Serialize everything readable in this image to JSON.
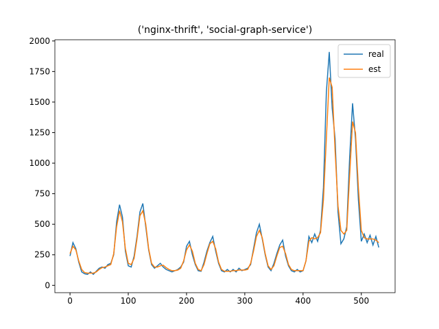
{
  "chart_data": {
    "type": "line",
    "title": "('nginx-thrift', 'social-graph-service')",
    "x": [
      0,
      5,
      10,
      15,
      20,
      25,
      30,
      35,
      40,
      45,
      50,
      55,
      60,
      65,
      70,
      75,
      80,
      85,
      90,
      95,
      100,
      105,
      110,
      115,
      120,
      125,
      130,
      135,
      140,
      145,
      150,
      155,
      160,
      165,
      170,
      175,
      180,
      185,
      190,
      195,
      200,
      205,
      210,
      215,
      220,
      225,
      230,
      235,
      240,
      245,
      250,
      255,
      260,
      265,
      270,
      275,
      280,
      285,
      290,
      295,
      300,
      305,
      310,
      315,
      320,
      325,
      330,
      335,
      340,
      345,
      350,
      355,
      360,
      365,
      370,
      375,
      380,
      385,
      390,
      395,
      400,
      405,
      410,
      415,
      420,
      425,
      430,
      435,
      440,
      445,
      450,
      455,
      460,
      465,
      470,
      475,
      480,
      485,
      490,
      495,
      500,
      505,
      510,
      515,
      520,
      525,
      530
    ],
    "series": [
      {
        "name": "real",
        "color": "#1f77b4",
        "values": [
          240,
          350,
          300,
          190,
          110,
          95,
          90,
          110,
          90,
          115,
          140,
          150,
          140,
          170,
          180,
          250,
          520,
          660,
          560,
          280,
          160,
          150,
          240,
          400,
          600,
          670,
          480,
          290,
          170,
          140,
          160,
          180,
          150,
          130,
          120,
          110,
          120,
          130,
          150,
          190,
          320,
          360,
          250,
          170,
          120,
          115,
          190,
          280,
          350,
          400,
          280,
          180,
          120,
          110,
          130,
          110,
          130,
          110,
          140,
          120,
          130,
          140,
          170,
          300,
          430,
          500,
          380,
          250,
          150,
          120,
          180,
          260,
          330,
          370,
          240,
          160,
          120,
          110,
          130,
          110,
          120,
          200,
          400,
          350,
          420,
          360,
          450,
          800,
          1580,
          1910,
          1450,
          1200,
          600,
          340,
          380,
          480,
          1050,
          1490,
          1200,
          700,
          360,
          420,
          350,
          410,
          330,
          400,
          310
        ]
      },
      {
        "name": "est",
        "color": "#ff7f0e",
        "values": [
          260,
          320,
          290,
          200,
          130,
          105,
          100,
          100,
          100,
          110,
          130,
          145,
          150,
          160,
          170,
          260,
          480,
          610,
          520,
          300,
          180,
          170,
          220,
          380,
          570,
          610,
          500,
          300,
          180,
          150,
          150,
          160,
          165,
          145,
          130,
          120,
          120,
          125,
          140,
          200,
          290,
          330,
          280,
          180,
          130,
          120,
          170,
          260,
          340,
          360,
          300,
          190,
          130,
          115,
          115,
          115,
          120,
          120,
          125,
          125,
          125,
          130,
          180,
          280,
          400,
          450,
          390,
          260,
          160,
          130,
          160,
          240,
          310,
          320,
          260,
          170,
          130,
          120,
          120,
          120,
          120,
          200,
          360,
          390,
          380,
          390,
          430,
          700,
          1200,
          1700,
          1620,
          1100,
          650,
          450,
          420,
          450,
          900,
          1340,
          1250,
          800,
          450,
          390,
          380,
          380,
          380,
          370,
          350
        ]
      }
    ],
    "xlim": [
      -26,
      558
    ],
    "ylim": [
      -60,
      2010
    ],
    "xticks": [
      0,
      100,
      200,
      300,
      400,
      500
    ],
    "yticks": [
      0,
      250,
      500,
      750,
      1000,
      1250,
      1500,
      1750,
      2000
    ],
    "legend": "upper right"
  }
}
